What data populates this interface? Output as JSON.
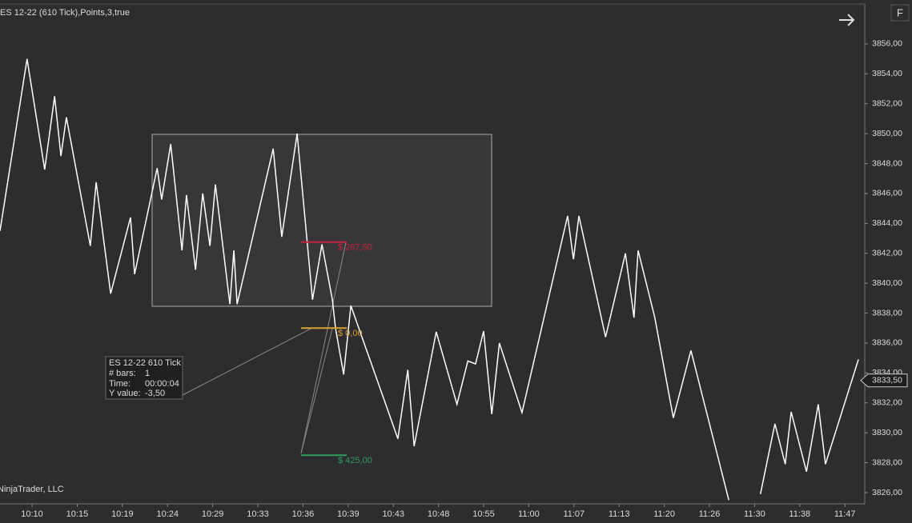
{
  "chart_data": {
    "type": "line",
    "title": "ES 12-22 (610 Tick),Points,3,true",
    "watermark": "NinjaTrader, LLC",
    "button": "F",
    "categories": [
      "10:10",
      "10:15",
      "10:19",
      "10:24",
      "10:29",
      "10:33",
      "10:36",
      "10:39",
      "10:43",
      "10:48",
      "10:55",
      "11:00",
      "11:07",
      "11:13",
      "11:20",
      "11:26",
      "11:30",
      "11:38",
      "11:47"
    ],
    "xlim": [
      -0.71,
      18.44
    ],
    "ylim": [
      3825.25,
      3858.67
    ],
    "yticks": [
      {
        "value": 3826,
        "label": "3826,00"
      },
      {
        "value": 3828,
        "label": "3828,00"
      },
      {
        "value": 3830,
        "label": "3830,00"
      },
      {
        "value": 3832,
        "label": "3832,00"
      },
      {
        "value": 3834,
        "label": "3834,00"
      },
      {
        "value": 3836,
        "label": "3836,00"
      },
      {
        "value": 3838,
        "label": "3838,00"
      },
      {
        "value": 3840,
        "label": "3840,00"
      },
      {
        "value": 3842,
        "label": "3842,00"
      },
      {
        "value": 3844,
        "label": "3844,00"
      },
      {
        "value": 3846,
        "label": "3846,00"
      },
      {
        "value": 3848,
        "label": "3848,00"
      },
      {
        "value": 3850,
        "label": "3850,00"
      },
      {
        "value": 3852,
        "label": "3852,00"
      },
      {
        "value": 3854,
        "label": "3854,00"
      },
      {
        "value": 3856,
        "label": "3856,00"
      }
    ],
    "series": [
      {
        "color": "#ffffff",
        "x": [
          -0.71,
          -0.11,
          0.28,
          0.5,
          0.64,
          0.76,
          1.29,
          1.42,
          1.74,
          2.18,
          2.27,
          2.77,
          2.87,
          3.07,
          3.32,
          3.42,
          3.62,
          3.78,
          3.94,
          4.06,
          4.38,
          4.47,
          4.54,
          5.34,
          5.53,
          5.87,
          6.21,
          6.42,
          6.65,
          6.72,
          6.9,
          7.06,
          8.1,
          8.32,
          8.46,
          8.95,
          9.41,
          9.65,
          9.82,
          10,
          10.18,
          10.35,
          10.85,
          11.86,
          11.99,
          12.11,
          12.7,
          13.14,
          13.33,
          13.42,
          13.79,
          14.2,
          14.59,
          15.43,
          15.65,
          16.13,
          16.45,
          16.68,
          16.81,
          17.15,
          17.41,
          17.57,
          18.3
        ],
        "values": [
          3843.5,
          3855,
          3847.6,
          3852.5,
          3848.5,
          3851.1,
          3842.5,
          3846.75,
          3839.3,
          3844.4,
          3840.6,
          3847.7,
          3845.6,
          3849.3,
          3842.2,
          3845.9,
          3840.9,
          3846,
          3842.5,
          3846.6,
          3838.6,
          3842.2,
          3838.6,
          3849,
          3843.1,
          3850,
          3838.9,
          3842.6,
          3838.9,
          3837,
          3833.9,
          3838.5,
          3829.6,
          3834.2,
          3829.1,
          3836.75,
          3831.9,
          3834.8,
          3834.6,
          3836.8,
          3831.25,
          3836,
          3831.35,
          3844.5,
          3841.6,
          3844.5,
          3836.4,
          3842,
          3837.7,
          3842.2,
          3837.7,
          3831,
          3835.5,
          3825.5,
          null,
          3825.9,
          3830.6,
          3827.9,
          3831.4,
          3827.4,
          3831.9,
          3827.9,
          3834.9
        ]
      }
    ],
    "annotations": [
      {
        "text": "$ 287,50",
        "y": 3842.75,
        "color": "#c8243c"
      },
      {
        "text": "$ 0,00",
        "y": 3837,
        "color": "#d9a030"
      },
      {
        "text": "$ 425,00",
        "y": 3828.5,
        "color": "#2e9e5e"
      }
    ],
    "last_price": {
      "value": 3833.5,
      "label": "3833,50"
    },
    "info": {
      "title": "ES 12-22 610 Tick",
      "rows": [
        [
          "# bars:",
          "1"
        ],
        [
          "Time:",
          "00:00:04"
        ],
        [
          "Y value:",
          "-3,50"
        ]
      ]
    }
  }
}
